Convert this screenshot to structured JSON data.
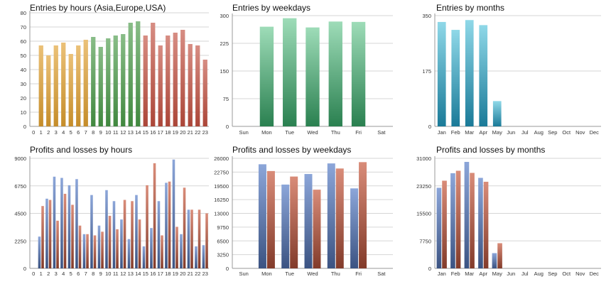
{
  "chart_data": [
    {
      "type": "bar",
      "title": "Entries by hours (Asia,Europe,USA)",
      "categories": [
        "0",
        "1",
        "2",
        "3",
        "4",
        "5",
        "6",
        "7",
        "8",
        "9",
        "10",
        "11",
        "12",
        "13",
        "14",
        "15",
        "16",
        "17",
        "18",
        "19",
        "20",
        "21",
        "22",
        "23"
      ],
      "series": [
        {
          "values": [
            null,
            57,
            50,
            57,
            59,
            51,
            57,
            61,
            63,
            56,
            62,
            64,
            65,
            73,
            74,
            64,
            73,
            57,
            64,
            66,
            68,
            58,
            57,
            47
          ]
        }
      ],
      "ylim": [
        0,
        80
      ],
      "yticks": [
        0,
        10,
        20,
        30,
        40,
        50,
        60,
        70,
        80
      ],
      "session_colors": {
        "asia": "#e0a030",
        "europe": "#4a9a48",
        "usa": "#c25040"
      },
      "grid": true
    },
    {
      "type": "bar",
      "title": "Entries by weekdays",
      "categories": [
        "Sun",
        "Mon",
        "Tue",
        "Wed",
        "Thu",
        "Fri",
        "Sat"
      ],
      "series": [
        {
          "values": [
            null,
            270,
            293,
            268,
            284,
            283,
            null
          ]
        }
      ],
      "ylim": [
        0,
        300
      ],
      "yticks": [
        0,
        75,
        150,
        225,
        300
      ],
      "colors": {
        "top": "#9edcb8",
        "bottom": "#2a8050"
      },
      "grid": true
    },
    {
      "type": "bar",
      "title": "Entries by months",
      "categories": [
        "Jan",
        "Feb",
        "Mar",
        "Apr",
        "May",
        "Jun",
        "Jul",
        "Aug",
        "Sep",
        "Oct",
        "Nov",
        "Dec"
      ],
      "series": [
        {
          "values": [
            330,
            305,
            336,
            320,
            80,
            null,
            null,
            null,
            null,
            null,
            null,
            null
          ]
        }
      ],
      "ylim": [
        0,
        350
      ],
      "yticks": [
        0,
        175,
        350
      ],
      "colors": {
        "top": "#8fd8e8",
        "bottom": "#1a7a98"
      },
      "grid": true
    },
    {
      "type": "bar",
      "title": "Profits and losses by hours",
      "categories": [
        "0",
        "1",
        "2",
        "3",
        "4",
        "5",
        "6",
        "7",
        "8",
        "9",
        "10",
        "11",
        "12",
        "13",
        "14",
        "15",
        "16",
        "17",
        "18",
        "19",
        "20",
        "21",
        "22",
        "23"
      ],
      "series": [
        {
          "values": [
            null,
            2600,
            5700,
            7500,
            7400,
            6800,
            7300,
            2800,
            6000,
            3500,
            6400,
            5500,
            4000,
            2400,
            6000,
            1800,
            3300,
            5500,
            7000,
            8900,
            2800,
            4800,
            1800,
            1900
          ]
        },
        {
          "values": [
            null,
            5100,
            5600,
            3900,
            6100,
            5200,
            3500,
            2800,
            2700,
            3000,
            4300,
            3200,
            5600,
            5500,
            4000,
            6800,
            8600,
            2700,
            7100,
            3400,
            6600,
            4800,
            4800,
            4500
          ]
        }
      ],
      "ylim": [
        0,
        9000
      ],
      "yticks": [
        0,
        2250,
        4500,
        6750,
        9000
      ],
      "colors": {
        "profit": "#5a80c8",
        "loss": "#c85a40"
      },
      "grid": true
    },
    {
      "type": "bar",
      "title": "Profits and losses by weekdays",
      "categories": [
        "Sun",
        "Mon",
        "Tue",
        "Wed",
        "Thu",
        "Fri",
        "Sat"
      ],
      "series": [
        {
          "values": [
            null,
            24600,
            19800,
            22300,
            24800,
            18900,
            null
          ]
        },
        {
          "values": [
            null,
            23000,
            21700,
            18600,
            23600,
            25100,
            null
          ]
        }
      ],
      "ylim": [
        0,
        26000
      ],
      "yticks": [
        0,
        3250,
        6500,
        9750,
        13000,
        16250,
        19500,
        22750,
        26000
      ],
      "colors": {
        "profit": "#5a80c8",
        "loss": "#c85a40"
      },
      "grid": true
    },
    {
      "type": "bar",
      "title": "Profits and losses by months",
      "categories": [
        "Jan",
        "Feb",
        "Mar",
        "Apr",
        "May",
        "Jun",
        "Jul",
        "Aug",
        "Sep",
        "Oct",
        "Nov",
        "Dec"
      ],
      "series": [
        {
          "values": [
            22700,
            26800,
            30000,
            25500,
            4300,
            null,
            null,
            null,
            null,
            null,
            null,
            null
          ]
        },
        {
          "values": [
            24700,
            27500,
            26900,
            24400,
            7100,
            null,
            null,
            null,
            null,
            null,
            null,
            null
          ]
        }
      ],
      "ylim": [
        0,
        31000
      ],
      "yticks": [
        0,
        7750,
        15500,
        23250,
        31000
      ],
      "colors": {
        "profit": "#5a80c8",
        "loss": "#c85a40"
      },
      "grid": true
    }
  ]
}
